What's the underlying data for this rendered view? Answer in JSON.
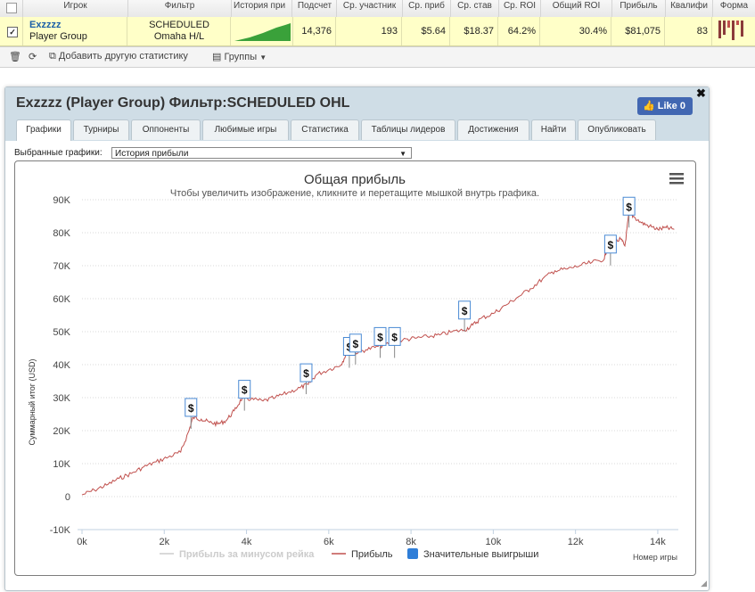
{
  "table": {
    "headers": [
      "Игрок",
      "Фильтр",
      "История при",
      "Подсчет",
      "Ср. участник",
      "Ср. приб",
      "Ср. став",
      "Ср. ROI",
      "Общий ROI",
      "Прибыль",
      "Квалифи",
      "Форма"
    ],
    "row": {
      "checked": true,
      "player_name": "Exzzzz",
      "player_group": "Player Group",
      "filter_line1": "SCHEDULED",
      "filter_line2": "Omaha H/L",
      "count": "14,376",
      "avg_entrants": "193",
      "avg_profit": "$5.64",
      "avg_stake": "$18.37",
      "avg_roi": "64.2%",
      "total_roi": "30.4%",
      "profit": "$81,075",
      "qualif": "83"
    }
  },
  "toolbar": {
    "add_stats": "Добавить другую статистику",
    "groups": "Группы"
  },
  "window": {
    "title": "Exzzzz (Player Group) Фильтр:SCHEDULED OHL",
    "like_label": "Like 0",
    "tabs": [
      "Графики",
      "Турниры",
      "Оппоненты",
      "Любимые игры",
      "Статистика",
      "Таблицы лидеров",
      "Достижения",
      "Найти",
      "Опубликовать"
    ],
    "selected_label": "Выбранные графики:",
    "selected_value": "История прибыли"
  },
  "colors": {
    "profit_line": "#c0504d",
    "rake_line": "#cccccc",
    "big_wins": "#2f7ed8",
    "sparkline": "#3aa13a"
  },
  "chart_data": {
    "type": "line",
    "title": "Общая прибыль",
    "subtitle": "Чтобы увеличить изображение, кликните и перетащите мышкой внутрь графика.",
    "xlabel": "Номер игры",
    "ylabel": "Суммарный итог (USD)",
    "x_ticks": [
      "0k",
      "2k",
      "4k",
      "6k",
      "8k",
      "10k",
      "12k",
      "14k"
    ],
    "y_ticks": [
      "-10K",
      "0",
      "10K",
      "20K",
      "30K",
      "40K",
      "50K",
      "60K",
      "70K",
      "80K",
      "90K"
    ],
    "xlim": [
      0,
      14500
    ],
    "ylim": [
      -10000,
      90000
    ],
    "legend": [
      "Прибыль за минусом рейка",
      "Прибыль",
      "Значительные выигрыши"
    ],
    "series": [
      {
        "name": "Прибыль",
        "x": [
          0,
          300,
          600,
          900,
          1200,
          1500,
          1800,
          2100,
          2400,
          2600,
          2700,
          2900,
          3100,
          3300,
          3500,
          3700,
          3900,
          4100,
          4400,
          4700,
          5000,
          5300,
          5500,
          5700,
          6000,
          6300,
          6450,
          6600,
          6900,
          7200,
          7500,
          7800,
          8100,
          8400,
          8700,
          9000,
          9300,
          9500,
          9700,
          10000,
          10300,
          10600,
          10900,
          11200,
          11500,
          11800,
          12100,
          12400,
          12700,
          12800,
          12900,
          13100,
          13200,
          13300,
          13400,
          13600,
          13800,
          14000,
          14200,
          14400
        ],
        "y": [
          500,
          2000,
          3500,
          5500,
          7000,
          9000,
          10500,
          12000,
          13500,
          20000,
          24000,
          23500,
          22500,
          22000,
          23000,
          26000,
          30000,
          29500,
          29000,
          30000,
          31500,
          33000,
          34000,
          37000,
          38500,
          40000,
          44000,
          43500,
          44500,
          45500,
          46500,
          47500,
          48000,
          48500,
          49000,
          50000,
          50500,
          52000,
          54000,
          55500,
          58000,
          60500,
          63000,
          66000,
          68500,
          69000,
          70000,
          71000,
          72000,
          77000,
          77000,
          78000,
          76000,
          86000,
          85000,
          83000,
          82000,
          81000,
          81500,
          81000
        ]
      },
      {
        "name": "Значительные выигрыши",
        "x": [
          2650,
          3950,
          5450,
          6500,
          6650,
          7250,
          7600,
          9300,
          12850,
          13300
        ],
        "y": [
          26500,
          32000,
          37000,
          45000,
          46000,
          48000,
          48000,
          56000,
          76000,
          87500
        ]
      }
    ]
  }
}
